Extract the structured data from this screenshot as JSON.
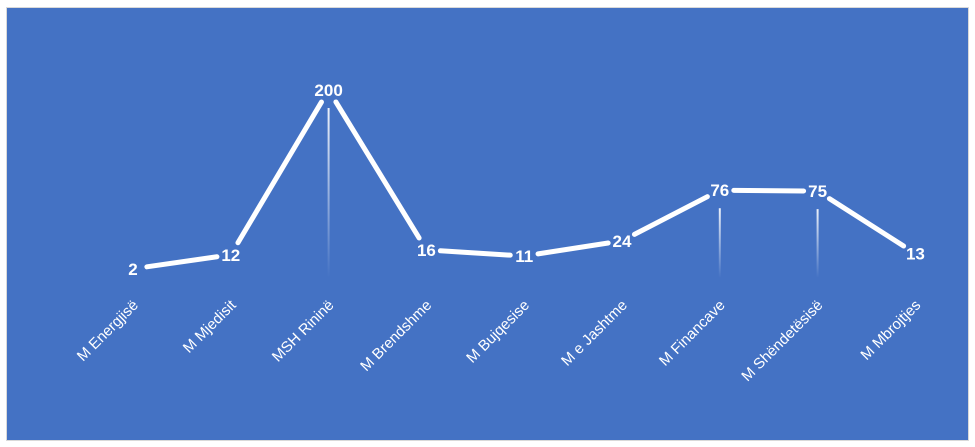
{
  "chart_data": {
    "type": "line",
    "categories": [
      "M Energjisë",
      "M Mjedisit",
      "MSH Rininë",
      "M Brendshme",
      "M Bujqesise",
      "M e Jashtme",
      "M Financave",
      "M Shëndetësisë",
      "M Mbrojtjes"
    ],
    "values": [
      2,
      12,
      200,
      16,
      11,
      24,
      76,
      75,
      13
    ],
    "title": "",
    "xlabel": "",
    "ylabel": "",
    "legend": "none",
    "grid": false,
    "colors": {
      "background": "#4472c4",
      "line": "#ffffff",
      "text": "#ffffff",
      "border": "#d9d9d9"
    }
  }
}
